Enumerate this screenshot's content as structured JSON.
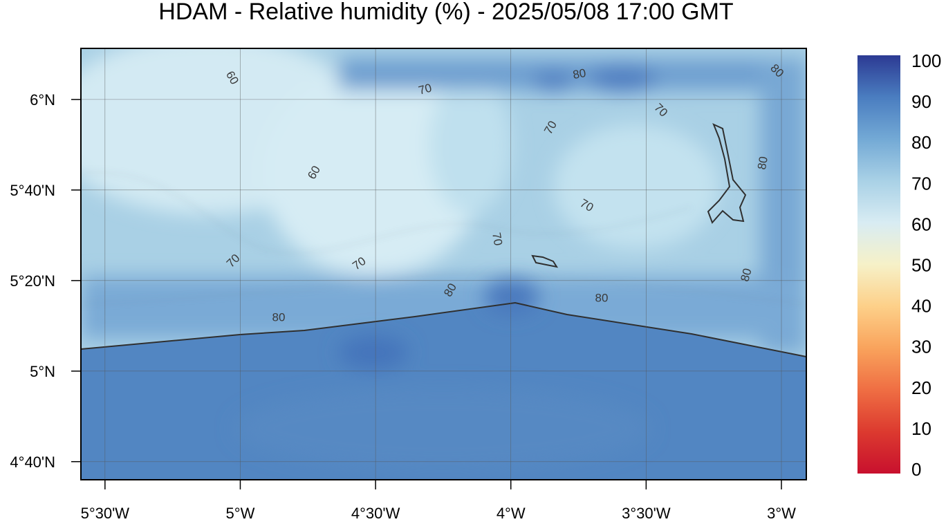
{
  "title": "HDAM - Relative humidity (%)  -  2025/05/08  17:00 GMT",
  "map": {
    "xlim": [
      -5.589,
      -2.908
    ],
    "ylim": [
      4.6,
      6.188
    ],
    "xticks": [
      {
        "value": -5.5,
        "label": "5°30'W"
      },
      {
        "value": -5,
        "label": "5°W"
      },
      {
        "value": -4.5,
        "label": "4°30'W"
      },
      {
        "value": -4,
        "label": "4°W"
      },
      {
        "value": -3.5,
        "label": "3°30'W"
      },
      {
        "value": -3,
        "label": "3°W"
      }
    ],
    "yticks": [
      {
        "value": 6,
        "label": "6°N"
      },
      {
        "value": 5.6667,
        "label": "5°40'N"
      },
      {
        "value": 5.3333,
        "label": "5°20'N"
      },
      {
        "value": 5,
        "label": "5°N"
      },
      {
        "value": 4.6667,
        "label": "4°40'N"
      }
    ],
    "contour_labels": [
      60,
      70,
      80,
      80,
      70,
      70,
      60,
      80,
      70,
      70,
      70,
      70,
      80,
      80,
      80,
      80
    ]
  },
  "colorbar": {
    "ticks": [
      0,
      10,
      20,
      30,
      40,
      50,
      60,
      70,
      80,
      90,
      100
    ],
    "colors": [
      "#c8102e",
      "#dc3a2f",
      "#ef6e43",
      "#f9a35c",
      "#fdd089",
      "#f6f1c8",
      "#d8ecf3",
      "#a9d1e6",
      "#73a9d5",
      "#4a7dc0",
      "#2c3a93"
    ]
  }
}
